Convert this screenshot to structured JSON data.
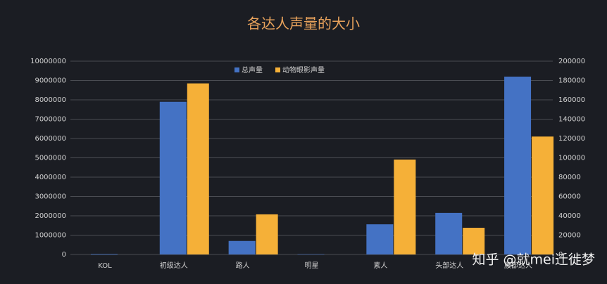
{
  "chart_data": {
    "type": "bar",
    "title": "各达人声量的大小",
    "categories": [
      "KOL",
      "初级达人",
      "路人",
      "明星",
      "素人",
      "头部达人",
      "腰部达人"
    ],
    "series": [
      {
        "name": "总声量",
        "color": "#4472c4",
        "values": [
          30000,
          7900000,
          700000,
          20000,
          1560000,
          2150000,
          9200000
        ]
      },
      {
        "name": "动物眼影声量",
        "color": "#f5b038",
        "axis": "y2",
        "values": [
          0,
          177000,
          41500,
          0,
          98200,
          27600,
          122000
        ]
      }
    ],
    "ylim": [
      0,
      10000000
    ],
    "yticks": [
      0,
      1000000,
      2000000,
      3000000,
      4000000,
      5000000,
      6000000,
      7000000,
      8000000,
      9000000,
      10000000
    ],
    "y2lim": [
      0,
      200000
    ],
    "y2ticks": [
      0,
      20000,
      40000,
      60000,
      80000,
      100000,
      120000,
      140000,
      160000,
      180000,
      200000
    ],
    "grid": true,
    "legend": "top",
    "watermark": "知乎 @就mei迁徙梦"
  }
}
